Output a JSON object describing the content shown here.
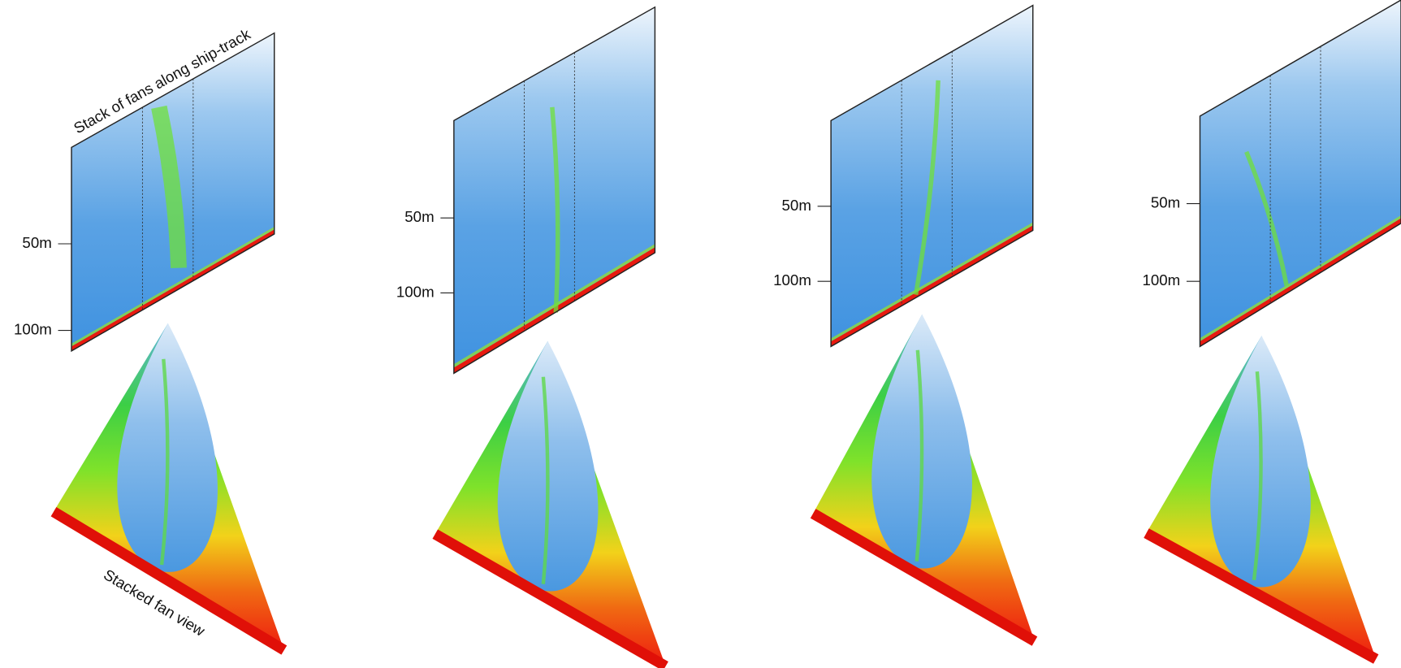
{
  "header": {
    "curtain_label": "Stack of fans along ship-track",
    "fan_label": "Stacked fan view"
  },
  "panels": [
    {
      "depth_labels": [
        "50m",
        "100m"
      ]
    },
    {
      "depth_labels": [
        "50m",
        "100m"
      ]
    },
    {
      "depth_labels": [
        "50m",
        "100m"
      ]
    },
    {
      "depth_labels": [
        "50m",
        "100m"
      ]
    }
  ]
}
